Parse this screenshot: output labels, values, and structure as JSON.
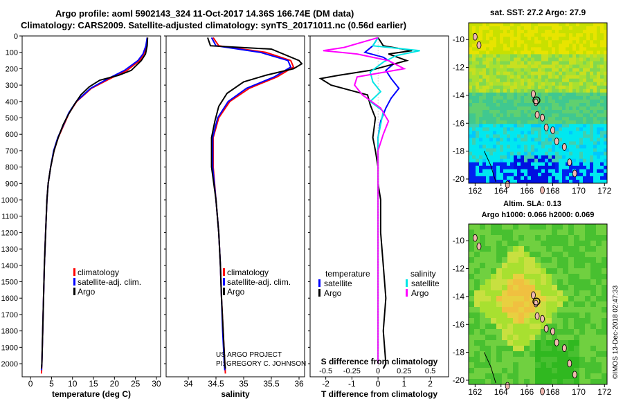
{
  "titles": {
    "line1": "Argo profile: aoml 5902143_324 11-Oct-2017 14.36S 166.74E (DM data)",
    "line2": "Climatology: CARS2009. Satellite-adjusted climatology: synTS_20171011.nc (0.56d earlier)"
  },
  "credits": {
    "project": "US ARGO PROJECT",
    "pi": "PI: GREGORY C. JOHNSON",
    "stamp": "©IMOS 13-Dec-2018 02:47:33"
  },
  "colors": {
    "climatology": "#ff0000",
    "satellite": "#0000ff",
    "argo": "#000000",
    "s_satellite": "#00e5e5",
    "s_argo": "#ff00ff"
  },
  "chart_data": [
    {
      "type": "line",
      "name": "temperature-profile",
      "xlabel": "temperature (deg C)",
      "ylabel": "",
      "xlim": [
        -2,
        31
      ],
      "ylim": [
        2080,
        0
      ],
      "xticks": [
        "0",
        "5",
        "10",
        "15",
        "20",
        "25",
        "30"
      ],
      "xtick_values": [
        0,
        5,
        10,
        15,
        20,
        25,
        30
      ],
      "yticks": [
        "0",
        "100",
        "200",
        "300",
        "400",
        "500",
        "600",
        "700",
        "800",
        "900",
        "1000",
        "1100",
        "1200",
        "1300",
        "1400",
        "1500",
        "1600",
        "1700",
        "1800",
        "1900",
        "2000"
      ],
      "ytick_values": [
        0,
        100,
        200,
        300,
        400,
        500,
        600,
        700,
        800,
        900,
        1000,
        1100,
        1200,
        1300,
        1400,
        1500,
        1600,
        1700,
        1800,
        1900,
        2000
      ],
      "legend": [
        "climatology",
        "satellite-adj. clim.",
        "Argo"
      ],
      "series": [
        {
          "name": "climatology",
          "color": "#ff0000",
          "points": [
            [
              27.9,
              10
            ],
            [
              27.6,
              60
            ],
            [
              27.0,
              110
            ],
            [
              26,
              150
            ],
            [
              23,
              210
            ],
            [
              19,
              260
            ],
            [
              14.5,
              320
            ],
            [
              11,
              400
            ],
            [
              9.2,
              470
            ],
            [
              8,
              540
            ],
            [
              6.6,
              620
            ],
            [
              5.6,
              700
            ],
            [
              4.8,
              800
            ],
            [
              4.2,
              900
            ],
            [
              3.9,
              1000
            ],
            [
              3.6,
              1200
            ],
            [
              3.3,
              1400
            ],
            [
              3.1,
              1600
            ],
            [
              2.9,
              1800
            ],
            [
              2.7,
              2000
            ],
            [
              2.6,
              2060
            ]
          ]
        },
        {
          "name": "satellite-adj. clim.",
          "color": "#0000ff",
          "points": [
            [
              27.8,
              10
            ],
            [
              27.5,
              60
            ],
            [
              26.8,
              110
            ],
            [
              25.6,
              150
            ],
            [
              22.4,
              210
            ],
            [
              18.5,
              260
            ],
            [
              14.3,
              320
            ],
            [
              10.9,
              400
            ],
            [
              9.1,
              470
            ],
            [
              7.9,
              540
            ],
            [
              6.5,
              620
            ],
            [
              5.5,
              700
            ],
            [
              4.8,
              800
            ],
            [
              4.2,
              900
            ],
            [
              3.9,
              1000
            ],
            [
              3.6,
              1200
            ],
            [
              3.3,
              1400
            ],
            [
              3.1,
              1600
            ],
            [
              2.9,
              1800
            ],
            [
              2.7,
              2000
            ],
            [
              2.6,
              2040
            ]
          ]
        },
        {
          "name": "Argo",
          "color": "#000000",
          "points": [
            [
              27.9,
              10
            ],
            [
              27.8,
              60
            ],
            [
              27.4,
              110
            ],
            [
              26.4,
              150
            ],
            [
              24,
              210
            ],
            [
              21,
              240
            ],
            [
              16.5,
              270
            ],
            [
              14,
              310
            ],
            [
              12,
              360
            ],
            [
              10.4,
              420
            ],
            [
              9,
              480
            ],
            [
              7.8,
              540
            ],
            [
              6.6,
              620
            ],
            [
              5.6,
              700
            ],
            [
              4.8,
              800
            ],
            [
              4.2,
              900
            ],
            [
              3.9,
              1000
            ],
            [
              3.6,
              1200
            ],
            [
              3.3,
              1400
            ],
            [
              3.1,
              1600
            ],
            [
              2.9,
              1800
            ],
            [
              2.7,
              2000
            ],
            [
              2.6,
              2030
            ]
          ]
        }
      ]
    },
    {
      "type": "line",
      "name": "salinity-profile",
      "xlabel": "salinity",
      "xlim": [
        33.6,
        36.1
      ],
      "ylim": [
        2080,
        0
      ],
      "xticks": [
        "34",
        "34.5",
        "35",
        "35.5",
        "36"
      ],
      "xtick_values": [
        34,
        34.5,
        35,
        35.5,
        36
      ],
      "legend": [
        "climatology",
        "satellite-adj. clim.",
        "Argo"
      ],
      "series": [
        {
          "name": "climatology",
          "color": "#ff0000",
          "points": [
            [
              34.45,
              10
            ],
            [
              34.55,
              60
            ],
            [
              35.4,
              100
            ],
            [
              35.85,
              150
            ],
            [
              35.9,
              190
            ],
            [
              35.6,
              250
            ],
            [
              35.1,
              320
            ],
            [
              34.75,
              400
            ],
            [
              34.55,
              500
            ],
            [
              34.45,
              620
            ],
            [
              34.45,
              800
            ],
            [
              34.5,
              1000
            ],
            [
              34.55,
              1200
            ],
            [
              34.58,
              1400
            ],
            [
              34.6,
              1600
            ],
            [
              34.63,
              1800
            ],
            [
              34.66,
              2000
            ],
            [
              34.67,
              2060
            ]
          ]
        },
        {
          "name": "satellite-adj. clim.",
          "color": "#0000ff",
          "points": [
            [
              34.42,
              10
            ],
            [
              34.5,
              60
            ],
            [
              35.3,
              100
            ],
            [
              35.8,
              150
            ],
            [
              35.85,
              190
            ],
            [
              35.55,
              250
            ],
            [
              35.05,
              320
            ],
            [
              34.72,
              400
            ],
            [
              34.53,
              500
            ],
            [
              34.44,
              620
            ],
            [
              34.44,
              800
            ],
            [
              34.5,
              1000
            ],
            [
              34.55,
              1200
            ],
            [
              34.58,
              1400
            ],
            [
              34.6,
              1600
            ],
            [
              34.62,
              1800
            ],
            [
              34.65,
              2000
            ],
            [
              34.66,
              2040
            ]
          ]
        },
        {
          "name": "Argo",
          "color": "#000000",
          "points": [
            [
              34.35,
              10
            ],
            [
              34.4,
              60
            ],
            [
              35.5,
              80
            ],
            [
              36.0,
              150
            ],
            [
              36.05,
              170
            ],
            [
              35.9,
              200
            ],
            [
              35.4,
              240
            ],
            [
              35.0,
              280
            ],
            [
              34.7,
              350
            ],
            [
              34.55,
              430
            ],
            [
              34.48,
              520
            ],
            [
              34.42,
              620
            ],
            [
              34.42,
              800
            ],
            [
              34.5,
              1000
            ],
            [
              34.55,
              1200
            ],
            [
              34.58,
              1400
            ],
            [
              34.6,
              1600
            ],
            [
              34.63,
              1800
            ],
            [
              34.66,
              2000
            ],
            [
              34.67,
              2030
            ]
          ]
        }
      ]
    },
    {
      "type": "line",
      "name": "difference-profile",
      "xlabel": "T difference from climatology",
      "xlabel_top": "S difference from climatology",
      "xlim": [
        -2.6,
        2.7
      ],
      "ylim": [
        2080,
        0
      ],
      "xticks": [
        "-2",
        "-1",
        "0",
        "1",
        "2"
      ],
      "xtick_values": [
        -2,
        -1,
        0,
        1,
        2
      ],
      "s_ticks": [
        "-0.5",
        "-0.25",
        "0",
        "0.25",
        "0.5"
      ],
      "s_tick_values": [
        -0.5,
        -0.25,
        0,
        0.25,
        0.5
      ],
      "legend_left_title": "temperature",
      "legend_right_title": "salinity",
      "legend_left": [
        "satellite",
        "Argo"
      ],
      "legend_right": [
        "satellite",
        "Argo"
      ],
      "series": [
        {
          "name": "T satellite",
          "color": "#0000ff",
          "points": [
            [
              0,
              10
            ],
            [
              -0.2,
              60
            ],
            [
              -0.5,
              100
            ],
            [
              0.2,
              130
            ],
            [
              0.6,
              170
            ],
            [
              0.3,
              210
            ],
            [
              0.5,
              260
            ],
            [
              0.8,
              320
            ],
            [
              0.5,
              380
            ],
            [
              0.3,
              440
            ],
            [
              0.1,
              520
            ],
            [
              0,
              620
            ],
            [
              0,
              800
            ],
            [
              0,
              1000
            ],
            [
              0,
              1200
            ],
            [
              0,
              1400
            ],
            [
              0,
              1600
            ],
            [
              0,
              1800
            ],
            [
              0,
              2000
            ]
          ]
        },
        {
          "name": "T Argo",
          "color": "#000000",
          "points": [
            [
              0,
              10
            ],
            [
              0.2,
              60
            ],
            [
              1.3,
              90
            ],
            [
              0.4,
              110
            ],
            [
              1.1,
              150
            ],
            [
              -0.3,
              210
            ],
            [
              -1.5,
              240
            ],
            [
              -2.2,
              260
            ],
            [
              -1.8,
              300
            ],
            [
              -0.4,
              360
            ],
            [
              -0.3,
              420
            ],
            [
              -0.1,
              500
            ],
            [
              -0.2,
              620
            ],
            [
              -0.1,
              700
            ],
            [
              0,
              800
            ],
            [
              0,
              900
            ],
            [
              0.1,
              1000
            ],
            [
              0.1,
              1200
            ],
            [
              0.2,
              1400
            ],
            [
              0.3,
              1600
            ],
            [
              0.2,
              1800
            ],
            [
              0.3,
              2000
            ],
            [
              0.2,
              2030
            ]
          ]
        },
        {
          "name": "S satellite",
          "color": "#00e5e5",
          "points": [
            [
              0,
              10
            ],
            [
              -0.2,
              60
            ],
            [
              1.6,
              90
            ],
            [
              0.7,
              120
            ],
            [
              0.2,
              160
            ],
            [
              -0.3,
              220
            ],
            [
              -0.2,
              280
            ],
            [
              0.1,
              340
            ],
            [
              -0.3,
              400
            ],
            [
              0.2,
              460
            ],
            [
              0.1,
              540
            ],
            [
              0,
              620
            ],
            [
              0,
              800
            ],
            [
              0,
              1000
            ],
            [
              0,
              1200
            ],
            [
              0,
              1400
            ],
            [
              0,
              1600
            ],
            [
              0,
              1800
            ],
            [
              0,
              2000
            ]
          ]
        },
        {
          "name": "S Argo",
          "color": "#ff00ff",
          "points": [
            [
              0,
              10
            ],
            [
              -1.3,
              70
            ],
            [
              -2.1,
              90
            ],
            [
              -0.8,
              110
            ],
            [
              0.4,
              150
            ],
            [
              1.0,
              200
            ],
            [
              -0.8,
              250
            ],
            [
              -0.9,
              300
            ],
            [
              -0.6,
              360
            ],
            [
              0.1,
              440
            ],
            [
              0.4,
              520
            ],
            [
              0.2,
              600
            ],
            [
              0,
              700
            ],
            [
              0,
              800
            ],
            [
              0,
              900
            ],
            [
              0,
              1000
            ],
            [
              0,
              1200
            ],
            [
              0,
              1400
            ],
            [
              0,
              1600
            ],
            [
              0,
              1800
            ],
            [
              0,
              2000
            ]
          ]
        }
      ]
    },
    {
      "type": "heatmap",
      "name": "sst-map",
      "title": "sat. SST: 27.2 Argo: 27.9",
      "xlim": [
        161.5,
        172.2
      ],
      "ylim": [
        -20.3,
        -8.8
      ],
      "xticks": [
        "162",
        "164",
        "166",
        "168",
        "170",
        "172"
      ],
      "xtick_values": [
        162,
        164,
        166,
        168,
        170,
        172
      ],
      "yticks": [
        "-10",
        "-12",
        "-14",
        "-16",
        "-18",
        "-20"
      ],
      "ytick_values": [
        -10,
        -12,
        -14,
        -16,
        -18,
        -20
      ],
      "marker": [
        166.74,
        -14.36
      ]
    },
    {
      "type": "heatmap",
      "name": "sla-map",
      "title": "Altim. SLA: 0.13",
      "subtitle": "Argo h1000: 0.066 h2000: 0.069",
      "xlim": [
        161.5,
        172.2
      ],
      "ylim": [
        -20.3,
        -8.8
      ],
      "xticks": [
        "162",
        "164",
        "166",
        "168",
        "170",
        "172"
      ],
      "xtick_values": [
        162,
        164,
        166,
        168,
        170,
        172
      ],
      "yticks": [
        "-10",
        "-12",
        "-14",
        "-16",
        "-18",
        "-20"
      ],
      "ytick_values": [
        -10,
        -12,
        -14,
        -16,
        -18,
        -20
      ],
      "marker": [
        166.74,
        -14.36
      ]
    }
  ]
}
